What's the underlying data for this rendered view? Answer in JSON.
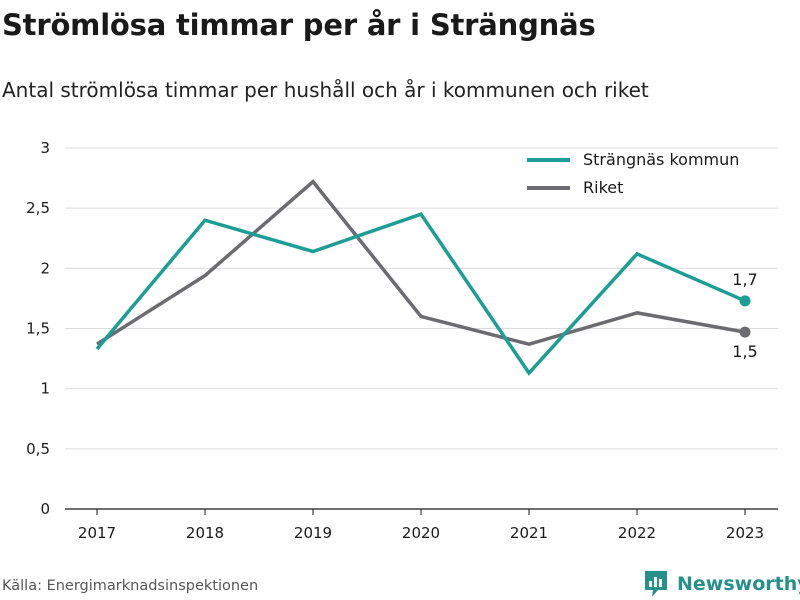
{
  "title": "Strömlösa timmar per år i Strängnäs",
  "subtitle": "Antal strömlösa timmar per hushåll och år i kommunen och riket",
  "source": "Källa: Energimarknadsinspektionen",
  "brand": {
    "name": "Newsworthy",
    "icon": "newsworthy-logo-icon",
    "color": "#26918a"
  },
  "chart_data": {
    "type": "line",
    "x": [
      "2017",
      "2018",
      "2019",
      "2020",
      "2021",
      "2022",
      "2023"
    ],
    "ylim": [
      0,
      3
    ],
    "yticks": [
      0,
      0.5,
      1,
      1.5,
      2,
      2.5,
      3
    ],
    "ytick_labels": [
      "0",
      "0,5",
      "1",
      "1,5",
      "2",
      "2,5",
      "3"
    ],
    "grid": "horizontal",
    "legend_position": "top-right",
    "series": [
      {
        "name": "Strängnäs kommun",
        "color": "#1a9e95",
        "values": [
          1.33,
          2.4,
          2.14,
          2.45,
          1.13,
          2.12,
          1.73
        ],
        "end_label": "1,7"
      },
      {
        "name": "Riket",
        "color": "#6b6b70",
        "values": [
          1.37,
          1.94,
          2.72,
          1.6,
          1.37,
          1.63,
          1.47
        ],
        "end_label": "1,5"
      }
    ]
  }
}
